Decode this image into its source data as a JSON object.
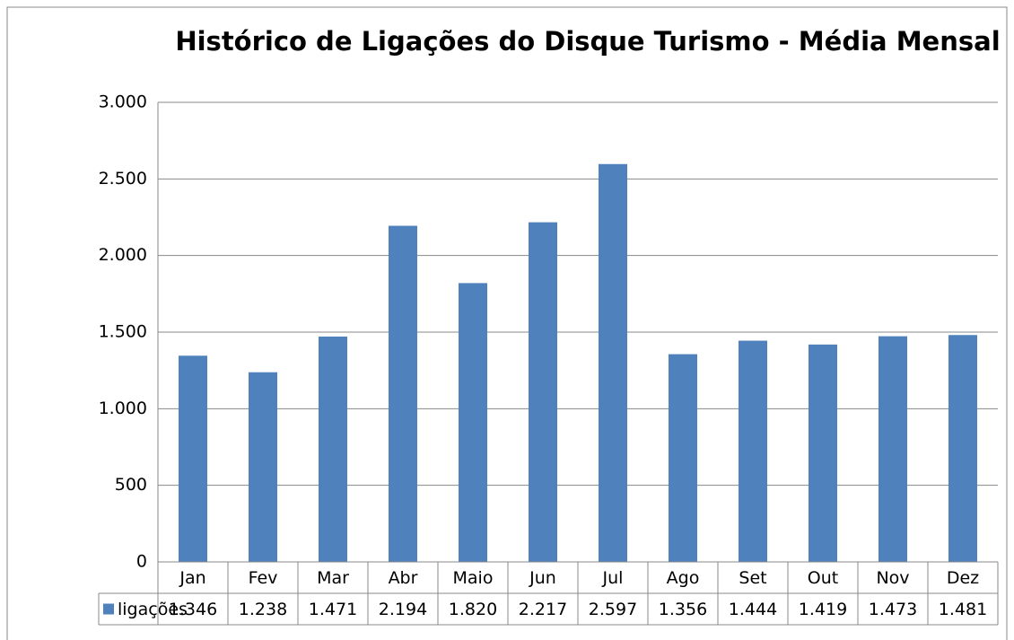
{
  "chart_data": {
    "type": "bar",
    "title": "Histórico de Ligações do Disque Turismo - Média Mensal",
    "categories": [
      "Jan",
      "Fev",
      "Mar",
      "Abr",
      "Maio",
      "Jun",
      "Jul",
      "Ago",
      "Set",
      "Out",
      "Nov",
      "Dez"
    ],
    "series": [
      {
        "name": "ligações",
        "color": "#4f81bd",
        "values": [
          1346,
          1238,
          1471,
          2194,
          1820,
          2217,
          2597,
          1356,
          1444,
          1419,
          1473,
          1481
        ],
        "value_labels": [
          "1.346",
          "1.238",
          "1.471",
          "2.194",
          "1.820",
          "2.217",
          "2.597",
          "1.356",
          "1.444",
          "1.419",
          "1.473",
          "1.481"
        ]
      }
    ],
    "ylim": [
      0,
      3000
    ],
    "yticks": [
      0,
      500,
      {
        "value": 1000,
        "label": "1.000"
      },
      {
        "value": 1500,
        "label": "1.500"
      },
      {
        "value": 2000,
        "label": "2.000"
      },
      {
        "value": 2500,
        "label": "2.500"
      },
      {
        "value": 3000,
        "label": "3.000"
      }
    ],
    "grid": true
  }
}
